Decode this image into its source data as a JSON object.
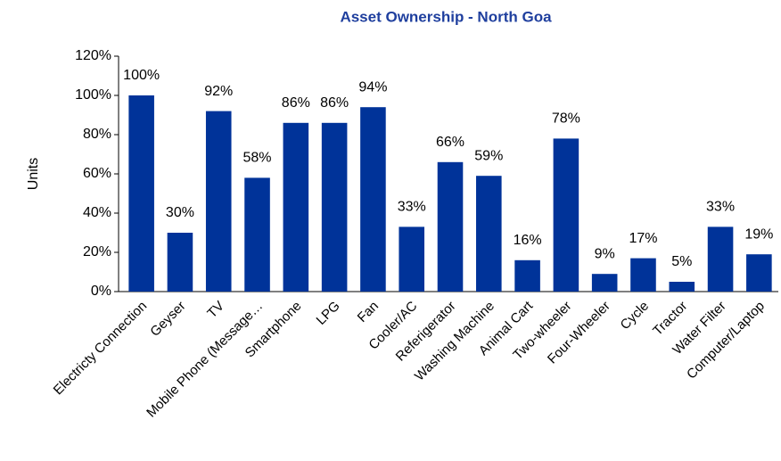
{
  "chart_data": {
    "type": "bar",
    "title": "Asset Ownership - North Goa",
    "y_label": "Units",
    "categories": [
      "Electricty Connection",
      "Geyser",
      "TV",
      "Mobile Phone (Message…",
      "Smartphone",
      "LPG",
      "Fan",
      "Cooler/AC",
      "Referigerator",
      "Washing Machine",
      "Animal Cart",
      "Two-wheeler",
      "Four-Wheeler",
      "Cycle",
      "Tractor",
      "Water Filter",
      "Computer/Laptop"
    ],
    "values": [
      100,
      30,
      92,
      58,
      86,
      86,
      94,
      33,
      66,
      59,
      16,
      78,
      9,
      17,
      5,
      33,
      19
    ],
    "value_labels": [
      "100%",
      "30%",
      "92%",
      "58%",
      "86%",
      "86%",
      "94%",
      "33%",
      "66%",
      "59%",
      "16%",
      "78%",
      "9%",
      "17%",
      "5%",
      "33%",
      "19%"
    ],
    "color": "#003399",
    "ylim": [
      0,
      120
    ],
    "yticks": [
      {
        "value": 0,
        "label": "0%"
      },
      {
        "value": 20,
        "label": "20%"
      },
      {
        "value": 40,
        "label": "40%"
      },
      {
        "value": 60,
        "label": "60%"
      },
      {
        "value": 80,
        "label": "80%"
      },
      {
        "value": 100,
        "label": "100%"
      },
      {
        "value": 120,
        "label": "120%"
      }
    ],
    "grid": false
  }
}
